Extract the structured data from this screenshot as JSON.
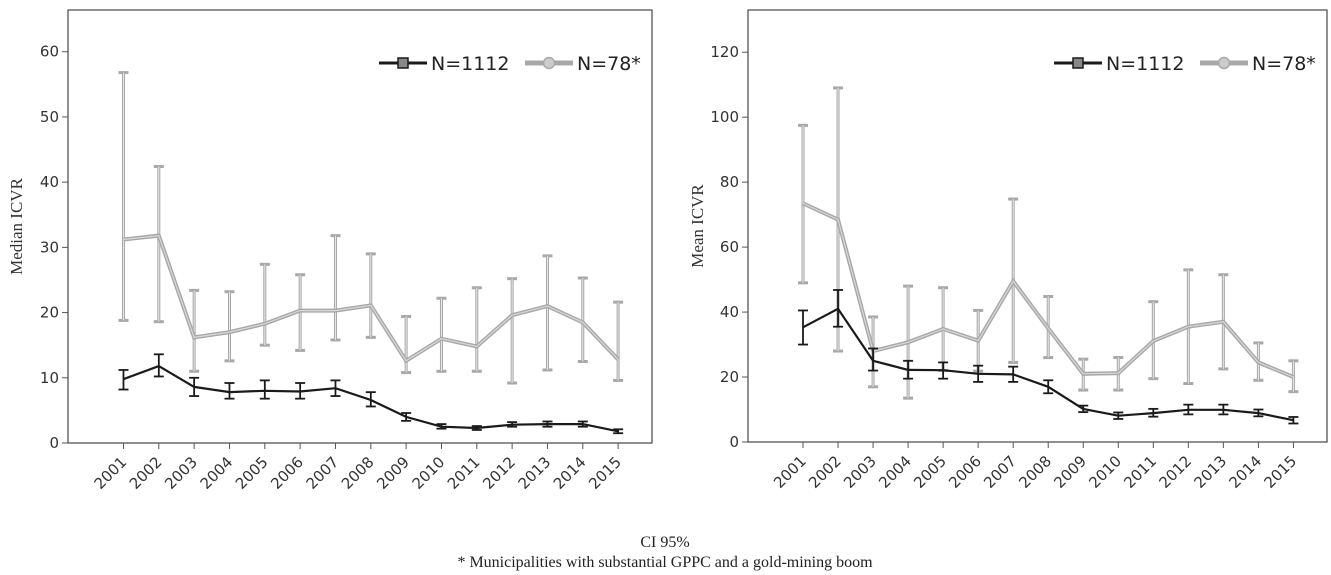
{
  "chart_data": [
    {
      "type": "line",
      "ylabel": "Median ICVR",
      "categories": [
        "2001",
        "2002",
        "2003",
        "2004",
        "2005",
        "2006",
        "2007",
        "2008",
        "2009",
        "2010",
        "2011",
        "2012",
        "2013",
        "2014",
        "2015"
      ],
      "ylim": [
        0,
        66.4
      ],
      "yticks": [
        0,
        10,
        20,
        30,
        40,
        50,
        60
      ],
      "legend": "upper right",
      "series": [
        {
          "name": "N=1112",
          "color": "#1a1a1a",
          "marker": "square",
          "values": [
            9.8,
            11.8,
            8.6,
            7.8,
            8.0,
            7.9,
            8.4,
            6.6,
            4.0,
            2.5,
            2.3,
            2.8,
            2.9,
            2.9,
            1.8
          ],
          "ci_low": [
            8.2,
            10.2,
            7.2,
            6.8,
            6.8,
            6.8,
            7.2,
            5.6,
            3.4,
            2.2,
            2.0,
            2.5,
            2.5,
            2.5,
            1.5
          ],
          "ci_high": [
            11.2,
            13.6,
            10.0,
            9.2,
            9.6,
            9.2,
            9.6,
            7.8,
            4.6,
            2.9,
            2.6,
            3.2,
            3.3,
            3.3,
            2.1
          ]
        },
        {
          "name": "N=78*",
          "color": "#a8a8a8",
          "marker": "circle",
          "values": [
            31.2,
            31.8,
            16.2,
            17.0,
            18.3,
            20.3,
            20.3,
            21.1,
            12.6,
            16.0,
            14.8,
            19.6,
            21.0,
            18.5,
            12.8
          ],
          "ci_low": [
            18.8,
            18.6,
            11.0,
            12.6,
            15.0,
            14.2,
            15.8,
            16.2,
            10.8,
            11.0,
            11.0,
            9.2,
            11.2,
            12.5,
            9.6
          ],
          "ci_high": [
            56.8,
            42.4,
            23.4,
            23.2,
            27.4,
            25.8,
            31.8,
            29.0,
            19.4,
            22.2,
            23.8,
            25.2,
            28.7,
            25.3,
            21.6
          ]
        }
      ]
    },
    {
      "type": "line",
      "ylabel": "Mean ICVR",
      "categories": [
        "2001",
        "2002",
        "2003",
        "2004",
        "2005",
        "2006",
        "2007",
        "2008",
        "2009",
        "2010",
        "2011",
        "2012",
        "2013",
        "2014",
        "2015"
      ],
      "ylim": [
        0,
        133
      ],
      "yticks": [
        0,
        20,
        40,
        60,
        80,
        100,
        120
      ],
      "legend": "upper right",
      "series": [
        {
          "name": "N=1112",
          "color": "#1a1a1a",
          "marker": "square",
          "values": [
            35.3,
            41.0,
            25.0,
            22.2,
            22.1,
            21.0,
            20.8,
            17.0,
            10.2,
            8.1,
            8.9,
            9.9,
            9.9,
            8.9,
            6.7
          ],
          "ci_low": [
            30.0,
            35.5,
            22.0,
            19.5,
            19.5,
            18.5,
            18.5,
            15.0,
            9.2,
            7.1,
            7.8,
            8.5,
            8.5,
            7.9,
            5.7
          ],
          "ci_high": [
            40.5,
            46.8,
            28.8,
            25.0,
            24.5,
            23.5,
            23.2,
            19.0,
            11.2,
            9.1,
            10.2,
            11.5,
            11.5,
            10.0,
            7.7
          ]
        },
        {
          "name": "N=78*",
          "color": "#a8a8a8",
          "marker": "circle",
          "values": [
            73.5,
            68.5,
            28.0,
            30.7,
            34.8,
            31.2,
            49.5,
            35.0,
            21.0,
            21.2,
            31.1,
            35.5,
            37.0,
            24.5,
            20.0
          ],
          "ci_low": [
            49.0,
            28.0,
            17.0,
            13.5,
            22.0,
            21.8,
            24.5,
            26.0,
            16.0,
            16.0,
            19.5,
            18.0,
            22.5,
            19.0,
            15.5
          ],
          "ci_high": [
            97.5,
            109.0,
            38.5,
            48.0,
            47.5,
            40.5,
            74.8,
            44.8,
            25.5,
            26.0,
            43.2,
            53.0,
            51.5,
            30.5,
            25.0
          ]
        }
      ]
    }
  ],
  "caption": [
    "CI 95%",
    "* Municipalities with substantial GPPC and a gold-mining boom"
  ]
}
